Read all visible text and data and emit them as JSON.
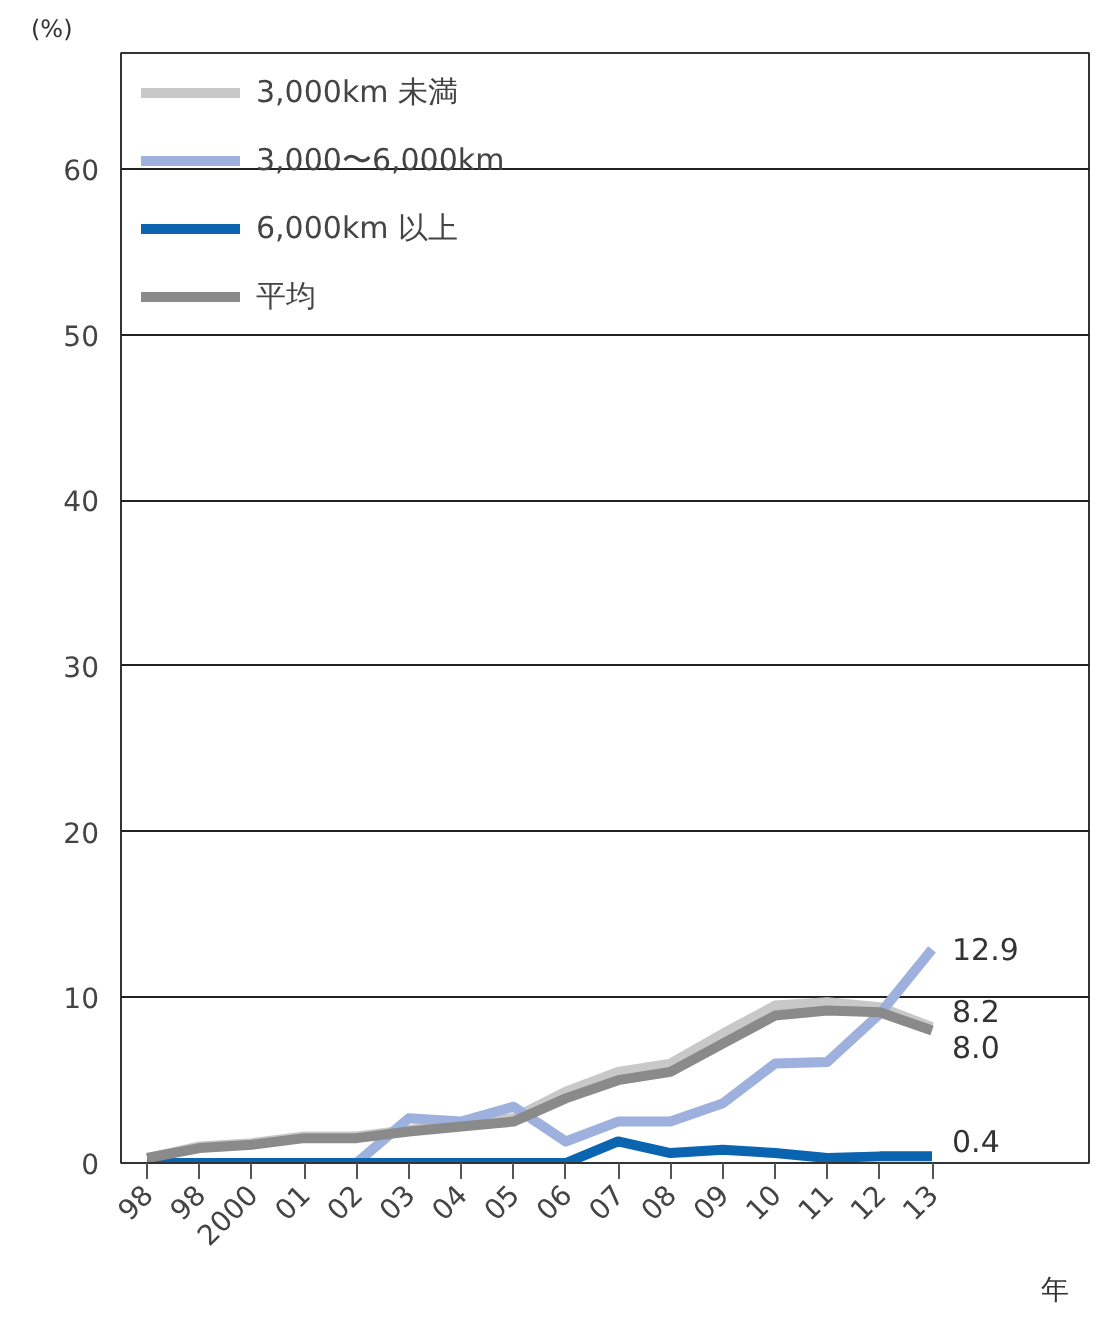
{
  "chart_data": {
    "type": "line",
    "ylabel": "(%)",
    "xlabel": "年",
    "categories": [
      "98",
      "98",
      "2000",
      "01",
      "02",
      "03",
      "04",
      "05",
      "06",
      "07",
      "08",
      "09",
      "10",
      "11",
      "12",
      "13"
    ],
    "ylim": [
      0,
      67
    ],
    "yticks": [
      0,
      10,
      20,
      30,
      40,
      50,
      60
    ],
    "grid": "y",
    "legend": "top left",
    "line_style": "solid",
    "series": [
      {
        "name": "3,000km 未満",
        "color": "#c8c8c8",
        "values": [
          0.3,
          1.0,
          1.2,
          1.6,
          1.6,
          2.0,
          2.4,
          2.7,
          4.3,
          5.5,
          6.0,
          7.8,
          9.5,
          9.7,
          9.4,
          8.2
        ],
        "value_labels": [
          null,
          null,
          null,
          null,
          null,
          null,
          null,
          null,
          null,
          null,
          null,
          null,
          null,
          null,
          null,
          "8.2"
        ]
      },
      {
        "name": "3,000〜6,000km",
        "color": "#9db0de",
        "values": [
          0,
          0,
          0,
          0,
          0,
          2.7,
          2.5,
          3.4,
          1.3,
          2.5,
          2.5,
          3.6,
          6.0,
          6.1,
          9.0,
          12.9
        ],
        "value_labels": [
          null,
          null,
          null,
          null,
          null,
          null,
          null,
          null,
          null,
          null,
          null,
          null,
          null,
          null,
          null,
          "12.9"
        ]
      },
      {
        "name": "6,000km 以上",
        "color": "#0a64b0",
        "values": [
          0,
          0,
          0,
          0,
          0,
          0,
          0,
          0,
          0,
          1.3,
          0.6,
          0.8,
          0.6,
          0.3,
          0.4,
          0.4
        ],
        "value_labels": [
          null,
          null,
          null,
          null,
          null,
          null,
          null,
          null,
          null,
          null,
          null,
          null,
          null,
          null,
          null,
          "0.4"
        ]
      },
      {
        "name": "平均",
        "color": "#8a8a8a",
        "values": [
          0.3,
          0.9,
          1.1,
          1.5,
          1.5,
          1.9,
          2.2,
          2.5,
          3.9,
          5.0,
          5.5,
          7.2,
          8.9,
          9.2,
          9.1,
          8.0
        ],
        "value_labels": [
          null,
          null,
          null,
          null,
          null,
          null,
          null,
          null,
          null,
          null,
          null,
          null,
          null,
          null,
          null,
          "8.0"
        ]
      }
    ]
  }
}
